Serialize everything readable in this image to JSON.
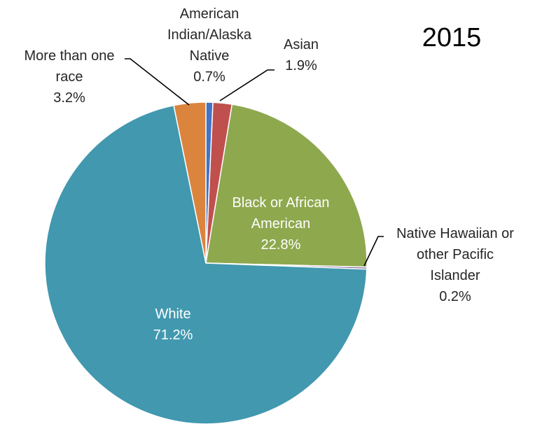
{
  "chart_data": {
    "type": "pie",
    "title": "2015",
    "slices": [
      {
        "name": "American Indian/Alaska Native",
        "label_lines": [
          "American",
          "Indian/Alaska",
          "Native"
        ],
        "value_label": "0.7%",
        "value": 0.7,
        "color": "#4472C4"
      },
      {
        "name": "Asian",
        "label_lines": [
          "Asian"
        ],
        "value_label": "1.9%",
        "value": 1.9,
        "color": "#C0504D"
      },
      {
        "name": "Black or African American",
        "label_lines": [
          "Black or African",
          "American"
        ],
        "value_label": "22.8%",
        "value": 22.8,
        "color": "#8EA84E"
      },
      {
        "name": "Native Hawaiian or other Pacific Islander",
        "label_lines": [
          "Native Hawaiian or",
          "other Pacific",
          "Islander"
        ],
        "value_label": "0.2%",
        "value": 0.2,
        "color": "#8064A2"
      },
      {
        "name": "White",
        "label_lines": [
          "White"
        ],
        "value_label": "71.2%",
        "value": 71.2,
        "color": "#4198AF"
      },
      {
        "name": "More than one race",
        "label_lines": [
          "More than one",
          "race"
        ],
        "value_label": "3.2%",
        "value": 3.2,
        "color": "#DB843D"
      }
    ]
  }
}
